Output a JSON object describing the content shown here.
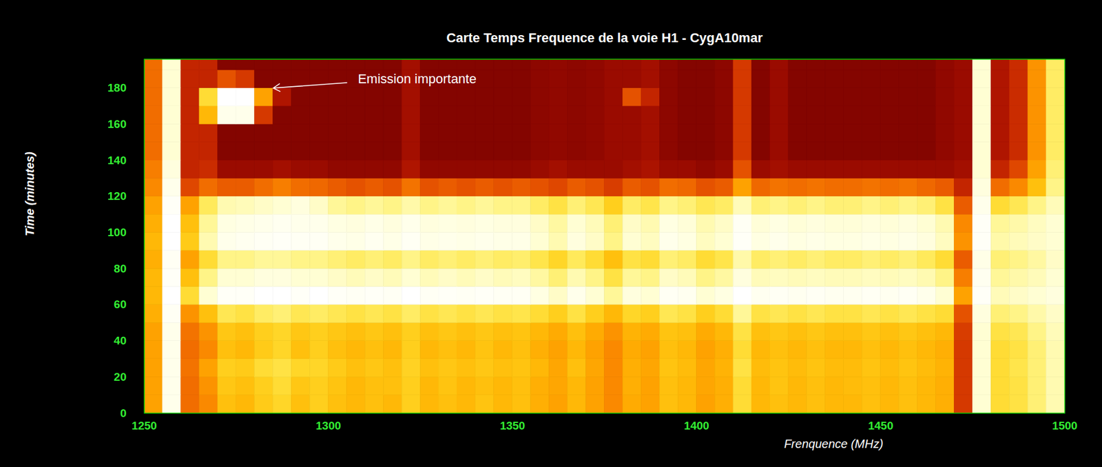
{
  "chart_data": {
    "type": "heatmap",
    "title": "Carte Temps Frequence de la voie H1 - CygA10mar",
    "x_label": "Frenquence (MHz)",
    "y_label": "Time (minutes)",
    "xlim": [
      1250,
      1500
    ],
    "xticks": [
      1250,
      1300,
      1350,
      1400,
      1450,
      1500
    ],
    "ylim": [
      0,
      196
    ],
    "yticks": [
      0,
      20,
      40,
      60,
      80,
      100,
      120,
      140,
      160,
      180
    ],
    "grid": false,
    "color_range": [
      0,
      1
    ],
    "x_bins": [
      1250,
      1255,
      1260,
      1265,
      1270,
      1275,
      1280,
      1285,
      1290,
      1295,
      1300,
      1305,
      1310,
      1315,
      1320,
      1325,
      1330,
      1335,
      1340,
      1345,
      1350,
      1355,
      1360,
      1365,
      1370,
      1375,
      1380,
      1385,
      1390,
      1395,
      1400,
      1405,
      1410,
      1415,
      1420,
      1425,
      1430,
      1435,
      1440,
      1445,
      1450,
      1455,
      1460,
      1465,
      1470,
      1475,
      1480,
      1485,
      1490,
      1495,
      1500
    ],
    "y_bins": [
      0,
      10,
      20,
      30,
      40,
      50,
      60,
      70,
      80,
      90,
      100,
      110,
      120,
      130,
      140,
      150,
      160,
      170,
      180,
      190,
      196
    ],
    "cells": [
      [
        0.55,
        0.95,
        0.45,
        0.5,
        0.62,
        0.6,
        0.65,
        0.68,
        0.62,
        0.66,
        0.62,
        0.6,
        0.62,
        0.6,
        0.66,
        0.6,
        0.62,
        0.6,
        0.63,
        0.6,
        0.62,
        0.58,
        0.55,
        0.6,
        0.55,
        0.5,
        0.57,
        0.55,
        0.62,
        0.6,
        0.55,
        0.58,
        0.7,
        0.6,
        0.62,
        0.6,
        0.62,
        0.6,
        0.6,
        0.62,
        0.6,
        0.62,
        0.6,
        0.58,
        0.35,
        0.9,
        0.7,
        0.72,
        0.78,
        0.85
      ],
      [
        0.55,
        0.95,
        0.45,
        0.52,
        0.64,
        0.62,
        0.66,
        0.7,
        0.64,
        0.66,
        0.63,
        0.6,
        0.62,
        0.62,
        0.66,
        0.6,
        0.63,
        0.6,
        0.62,
        0.6,
        0.62,
        0.58,
        0.56,
        0.6,
        0.55,
        0.5,
        0.58,
        0.55,
        0.62,
        0.6,
        0.56,
        0.58,
        0.7,
        0.6,
        0.63,
        0.6,
        0.62,
        0.6,
        0.61,
        0.62,
        0.6,
        0.62,
        0.6,
        0.58,
        0.35,
        0.9,
        0.7,
        0.72,
        0.78,
        0.85
      ],
      [
        0.55,
        0.95,
        0.46,
        0.55,
        0.66,
        0.65,
        0.7,
        0.72,
        0.68,
        0.68,
        0.65,
        0.62,
        0.64,
        0.62,
        0.67,
        0.62,
        0.64,
        0.62,
        0.64,
        0.62,
        0.63,
        0.6,
        0.56,
        0.62,
        0.56,
        0.5,
        0.58,
        0.56,
        0.63,
        0.61,
        0.56,
        0.59,
        0.72,
        0.61,
        0.63,
        0.61,
        0.63,
        0.61,
        0.61,
        0.63,
        0.61,
        0.63,
        0.61,
        0.59,
        0.35,
        0.9,
        0.7,
        0.73,
        0.78,
        0.85
      ],
      [
        0.55,
        0.95,
        0.45,
        0.5,
        0.62,
        0.6,
        0.65,
        0.68,
        0.62,
        0.66,
        0.62,
        0.6,
        0.62,
        0.6,
        0.66,
        0.6,
        0.62,
        0.6,
        0.63,
        0.6,
        0.62,
        0.58,
        0.55,
        0.6,
        0.55,
        0.5,
        0.57,
        0.55,
        0.62,
        0.6,
        0.55,
        0.58,
        0.7,
        0.6,
        0.62,
        0.6,
        0.62,
        0.6,
        0.6,
        0.62,
        0.6,
        0.62,
        0.6,
        0.58,
        0.35,
        0.9,
        0.7,
        0.72,
        0.78,
        0.85
      ],
      [
        0.55,
        0.95,
        0.46,
        0.52,
        0.64,
        0.62,
        0.66,
        0.68,
        0.64,
        0.66,
        0.64,
        0.62,
        0.64,
        0.62,
        0.66,
        0.62,
        0.64,
        0.62,
        0.64,
        0.62,
        0.63,
        0.6,
        0.57,
        0.62,
        0.57,
        0.52,
        0.59,
        0.57,
        0.63,
        0.62,
        0.57,
        0.6,
        0.72,
        0.62,
        0.64,
        0.62,
        0.64,
        0.62,
        0.62,
        0.64,
        0.62,
        0.64,
        0.62,
        0.6,
        0.36,
        0.9,
        0.72,
        0.74,
        0.8,
        0.86
      ],
      [
        0.58,
        0.97,
        0.52,
        0.62,
        0.74,
        0.72,
        0.76,
        0.78,
        0.74,
        0.76,
        0.74,
        0.72,
        0.74,
        0.72,
        0.76,
        0.72,
        0.74,
        0.72,
        0.74,
        0.72,
        0.73,
        0.7,
        0.66,
        0.72,
        0.66,
        0.6,
        0.68,
        0.66,
        0.74,
        0.72,
        0.66,
        0.7,
        0.82,
        0.72,
        0.74,
        0.72,
        0.74,
        0.72,
        0.72,
        0.74,
        0.72,
        0.74,
        0.72,
        0.7,
        0.4,
        0.92,
        0.78,
        0.8,
        0.84,
        0.88
      ],
      [
        0.6,
        1.0,
        0.7,
        0.9,
        0.98,
        0.98,
        1.0,
        1.0,
        0.98,
        1.0,
        0.98,
        0.97,
        0.98,
        0.97,
        1.0,
        0.97,
        0.98,
        0.97,
        0.98,
        0.97,
        0.97,
        0.93,
        0.88,
        0.95,
        0.9,
        0.82,
        0.92,
        0.9,
        0.97,
        0.96,
        0.9,
        0.93,
        1.0,
        0.96,
        0.97,
        0.96,
        0.97,
        0.96,
        0.96,
        0.97,
        0.96,
        0.97,
        0.95,
        0.9,
        0.55,
        0.98,
        0.86,
        0.88,
        0.9,
        0.92
      ],
      [
        0.6,
        0.98,
        0.62,
        0.8,
        0.9,
        0.9,
        0.92,
        0.92,
        0.9,
        0.9,
        0.88,
        0.86,
        0.88,
        0.86,
        0.9,
        0.86,
        0.88,
        0.86,
        0.88,
        0.86,
        0.87,
        0.83,
        0.78,
        0.85,
        0.8,
        0.72,
        0.82,
        0.8,
        0.88,
        0.86,
        0.8,
        0.83,
        0.92,
        0.86,
        0.87,
        0.86,
        0.87,
        0.86,
        0.86,
        0.87,
        0.86,
        0.87,
        0.85,
        0.8,
        0.48,
        0.96,
        0.82,
        0.84,
        0.86,
        0.9
      ],
      [
        0.58,
        0.97,
        0.55,
        0.7,
        0.8,
        0.8,
        0.82,
        0.82,
        0.8,
        0.8,
        0.78,
        0.76,
        0.78,
        0.76,
        0.8,
        0.76,
        0.78,
        0.76,
        0.78,
        0.76,
        0.77,
        0.73,
        0.68,
        0.75,
        0.7,
        0.62,
        0.72,
        0.7,
        0.78,
        0.76,
        0.7,
        0.73,
        0.84,
        0.76,
        0.78,
        0.76,
        0.78,
        0.76,
        0.76,
        0.78,
        0.76,
        0.78,
        0.75,
        0.7,
        0.42,
        0.94,
        0.78,
        0.8,
        0.83,
        0.88
      ],
      [
        0.6,
        1.0,
        0.65,
        0.85,
        0.95,
        0.96,
        0.97,
        0.98,
        0.97,
        0.97,
        0.95,
        0.94,
        0.96,
        0.94,
        0.97,
        0.94,
        0.95,
        0.94,
        0.95,
        0.94,
        0.94,
        0.9,
        0.85,
        0.92,
        0.88,
        0.8,
        0.9,
        0.87,
        0.95,
        0.93,
        0.87,
        0.9,
        0.98,
        0.93,
        0.95,
        0.93,
        0.94,
        0.93,
        0.93,
        0.94,
        0.93,
        0.94,
        0.92,
        0.87,
        0.52,
        0.98,
        0.84,
        0.86,
        0.88,
        0.9
      ],
      [
        0.58,
        1.0,
        0.62,
        0.82,
        0.93,
        0.94,
        0.95,
        0.96,
        0.95,
        0.95,
        0.93,
        0.92,
        0.94,
        0.92,
        0.95,
        0.92,
        0.93,
        0.92,
        0.93,
        0.92,
        0.92,
        0.88,
        0.83,
        0.9,
        0.86,
        0.78,
        0.88,
        0.85,
        0.93,
        0.91,
        0.85,
        0.88,
        0.97,
        0.91,
        0.93,
        0.91,
        0.92,
        0.91,
        0.91,
        0.92,
        0.91,
        0.92,
        0.9,
        0.85,
        0.5,
        0.98,
        0.82,
        0.84,
        0.87,
        0.9
      ],
      [
        0.55,
        0.98,
        0.55,
        0.75,
        0.85,
        0.86,
        0.88,
        0.9,
        0.92,
        0.88,
        0.82,
        0.8,
        0.82,
        0.8,
        0.84,
        0.8,
        0.82,
        0.8,
        0.82,
        0.8,
        0.8,
        0.76,
        0.72,
        0.78,
        0.74,
        0.66,
        0.76,
        0.73,
        0.8,
        0.78,
        0.74,
        0.76,
        0.86,
        0.78,
        0.8,
        0.78,
        0.8,
        0.78,
        0.78,
        0.8,
        0.78,
        0.8,
        0.78,
        0.72,
        0.42,
        0.95,
        0.7,
        0.74,
        0.8,
        0.86
      ],
      [
        0.5,
        0.95,
        0.38,
        0.45,
        0.42,
        0.42,
        0.45,
        0.48,
        0.45,
        0.44,
        0.42,
        0.4,
        0.42,
        0.4,
        0.46,
        0.4,
        0.42,
        0.4,
        0.42,
        0.4,
        0.42,
        0.4,
        0.38,
        0.42,
        0.4,
        0.36,
        0.42,
        0.4,
        0.45,
        0.44,
        0.4,
        0.42,
        0.55,
        0.44,
        0.46,
        0.45,
        0.46,
        0.45,
        0.45,
        0.46,
        0.45,
        0.46,
        0.44,
        0.42,
        0.3,
        0.92,
        0.45,
        0.5,
        0.62,
        0.8
      ],
      [
        0.48,
        0.92,
        0.3,
        0.32,
        0.2,
        0.2,
        0.2,
        0.22,
        0.2,
        0.2,
        0.18,
        0.18,
        0.18,
        0.18,
        0.25,
        0.18,
        0.18,
        0.18,
        0.18,
        0.18,
        0.18,
        0.2,
        0.22,
        0.2,
        0.2,
        0.2,
        0.22,
        0.24,
        0.2,
        0.2,
        0.18,
        0.2,
        0.4,
        0.2,
        0.22,
        0.2,
        0.2,
        0.2,
        0.2,
        0.2,
        0.2,
        0.2,
        0.2,
        0.2,
        0.22,
        0.9,
        0.3,
        0.38,
        0.55,
        0.78
      ],
      [
        0.45,
        0.9,
        0.3,
        0.3,
        0.15,
        0.15,
        0.15,
        0.15,
        0.15,
        0.15,
        0.15,
        0.15,
        0.15,
        0.15,
        0.22,
        0.15,
        0.15,
        0.15,
        0.15,
        0.15,
        0.15,
        0.17,
        0.18,
        0.17,
        0.18,
        0.2,
        0.2,
        0.22,
        0.17,
        0.15,
        0.15,
        0.17,
        0.35,
        0.15,
        0.2,
        0.15,
        0.15,
        0.15,
        0.15,
        0.15,
        0.15,
        0.15,
        0.15,
        0.18,
        0.2,
        0.9,
        0.25,
        0.32,
        0.52,
        0.76
      ],
      [
        0.45,
        0.9,
        0.3,
        0.3,
        0.15,
        0.15,
        0.15,
        0.15,
        0.15,
        0.15,
        0.15,
        0.15,
        0.15,
        0.15,
        0.22,
        0.15,
        0.15,
        0.15,
        0.15,
        0.15,
        0.15,
        0.17,
        0.18,
        0.17,
        0.18,
        0.2,
        0.2,
        0.22,
        0.17,
        0.15,
        0.15,
        0.17,
        0.35,
        0.15,
        0.2,
        0.15,
        0.15,
        0.15,
        0.15,
        0.15,
        0.15,
        0.15,
        0.15,
        0.18,
        0.2,
        0.9,
        0.25,
        0.32,
        0.52,
        0.76
      ],
      [
        0.45,
        0.9,
        0.3,
        0.6,
        0.95,
        0.95,
        0.35,
        0.15,
        0.15,
        0.15,
        0.15,
        0.15,
        0.15,
        0.15,
        0.22,
        0.15,
        0.15,
        0.15,
        0.15,
        0.15,
        0.15,
        0.17,
        0.18,
        0.17,
        0.18,
        0.2,
        0.2,
        0.22,
        0.17,
        0.15,
        0.15,
        0.17,
        0.35,
        0.15,
        0.2,
        0.15,
        0.15,
        0.15,
        0.15,
        0.15,
        0.15,
        0.15,
        0.15,
        0.18,
        0.2,
        0.9,
        0.25,
        0.32,
        0.52,
        0.76
      ],
      [
        0.45,
        0.9,
        0.3,
        0.7,
        1.0,
        1.0,
        0.55,
        0.25,
        0.15,
        0.15,
        0.15,
        0.15,
        0.15,
        0.15,
        0.22,
        0.15,
        0.15,
        0.15,
        0.15,
        0.15,
        0.15,
        0.17,
        0.18,
        0.17,
        0.18,
        0.2,
        0.4,
        0.3,
        0.17,
        0.15,
        0.15,
        0.17,
        0.35,
        0.15,
        0.2,
        0.15,
        0.15,
        0.15,
        0.15,
        0.15,
        0.15,
        0.15,
        0.15,
        0.18,
        0.2,
        0.9,
        0.25,
        0.32,
        0.52,
        0.76
      ],
      [
        0.45,
        0.9,
        0.3,
        0.3,
        0.4,
        0.35,
        0.15,
        0.15,
        0.15,
        0.15,
        0.15,
        0.15,
        0.15,
        0.15,
        0.22,
        0.15,
        0.15,
        0.15,
        0.15,
        0.15,
        0.15,
        0.17,
        0.18,
        0.17,
        0.18,
        0.2,
        0.2,
        0.22,
        0.17,
        0.15,
        0.15,
        0.17,
        0.35,
        0.15,
        0.2,
        0.15,
        0.15,
        0.15,
        0.15,
        0.15,
        0.15,
        0.15,
        0.15,
        0.18,
        0.2,
        0.9,
        0.25,
        0.32,
        0.52,
        0.76
      ],
      [
        0.45,
        0.9,
        0.3,
        0.3,
        0.15,
        0.15,
        0.15,
        0.15,
        0.15,
        0.15,
        0.15,
        0.15,
        0.15,
        0.15,
        0.22,
        0.15,
        0.15,
        0.15,
        0.15,
        0.15,
        0.15,
        0.17,
        0.18,
        0.17,
        0.18,
        0.2,
        0.2,
        0.22,
        0.17,
        0.15,
        0.15,
        0.17,
        0.35,
        0.15,
        0.2,
        0.15,
        0.15,
        0.15,
        0.15,
        0.15,
        0.15,
        0.15,
        0.15,
        0.18,
        0.2,
        0.9,
        0.25,
        0.32,
        0.52,
        0.76
      ]
    ],
    "annotations": [
      {
        "text": "Emission importante",
        "x": 1308,
        "y": 185,
        "arrow_from": [
          1305,
          183
        ],
        "arrow_to": [
          1285,
          180
        ]
      }
    ]
  }
}
